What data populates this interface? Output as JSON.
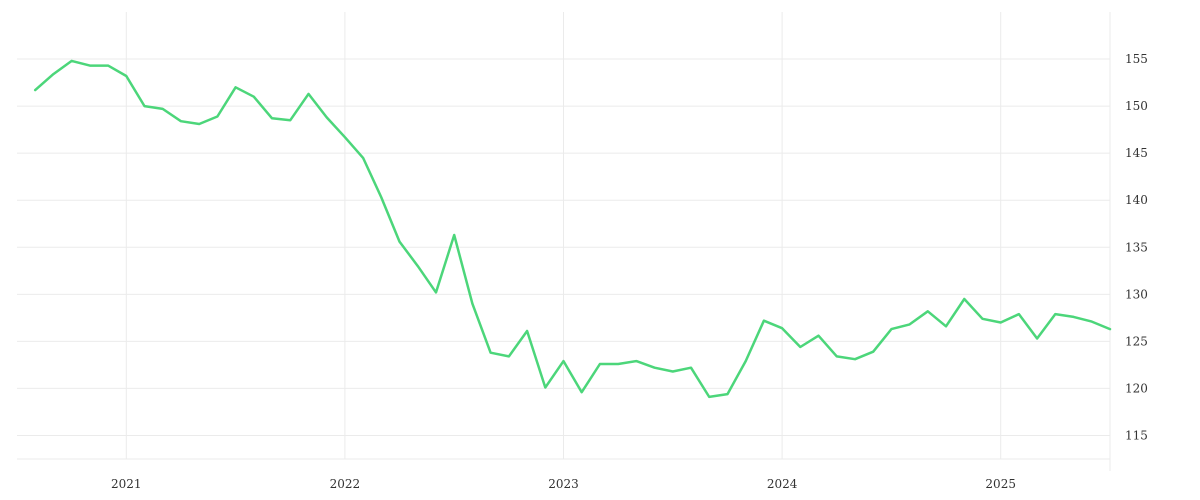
{
  "chart_data": {
    "type": "line",
    "title": "",
    "xlabel": "",
    "ylabel": "",
    "y_axis_position": "right",
    "grid": true,
    "legend": "none",
    "line_color": "#4cd67a",
    "xlim": [
      "2020-07",
      "2025-07"
    ],
    "ylim": [
      112.5,
      160
    ],
    "x_ticks": [
      {
        "x": "2021-01",
        "label": "2021"
      },
      {
        "x": "2022-01",
        "label": "2022"
      },
      {
        "x": "2023-01",
        "label": "2023"
      },
      {
        "x": "2024-01",
        "label": "2024"
      },
      {
        "x": "2025-01",
        "label": "2025"
      }
    ],
    "y_ticks": [
      115,
      120,
      125,
      130,
      135,
      140,
      145,
      150,
      155
    ],
    "series": [
      {
        "x": [
          "2020-08",
          "2020-09",
          "2020-10",
          "2020-11",
          "2020-12",
          "2021-01",
          "2021-02",
          "2021-03",
          "2021-04",
          "2021-05",
          "2021-06",
          "2021-07",
          "2021-08",
          "2021-09",
          "2021-10",
          "2021-11",
          "2021-12",
          "2022-01",
          "2022-02",
          "2022-03",
          "2022-04",
          "2022-05",
          "2022-06",
          "2022-07",
          "2022-08",
          "2022-09",
          "2022-10",
          "2022-11",
          "2022-12",
          "2023-01",
          "2023-02",
          "2023-03",
          "2023-04",
          "2023-05",
          "2023-06",
          "2023-07",
          "2023-08",
          "2023-09",
          "2023-10",
          "2023-11",
          "2023-12",
          "2024-01",
          "2024-02",
          "2024-03",
          "2024-04",
          "2024-05",
          "2024-06",
          "2024-07",
          "2024-08",
          "2024-09",
          "2024-10",
          "2024-11",
          "2024-12",
          "2025-01",
          "2025-02",
          "2025-03",
          "2025-04",
          "2025-05",
          "2025-06",
          "2025-07"
        ],
        "y": [
          151.7,
          153.4,
          154.8,
          154.3,
          154.3,
          153.2,
          150.0,
          149.7,
          148.4,
          148.1,
          148.9,
          152.0,
          151.0,
          148.7,
          148.5,
          151.3,
          148.8,
          146.7,
          144.5,
          140.3,
          135.6,
          133.0,
          130.2,
          136.3,
          129.0,
          123.8,
          123.4,
          126.1,
          120.1,
          122.9,
          119.6,
          122.6,
          122.6,
          122.9,
          122.2,
          121.8,
          122.2,
          119.1,
          119.4,
          122.9,
          127.2,
          126.4,
          124.4,
          125.6,
          123.4,
          123.1,
          123.9,
          126.3,
          126.8,
          128.2,
          126.6,
          129.5,
          127.4,
          127.0,
          127.9,
          125.3,
          127.9,
          127.6,
          127.1,
          126.3
        ]
      }
    ]
  }
}
